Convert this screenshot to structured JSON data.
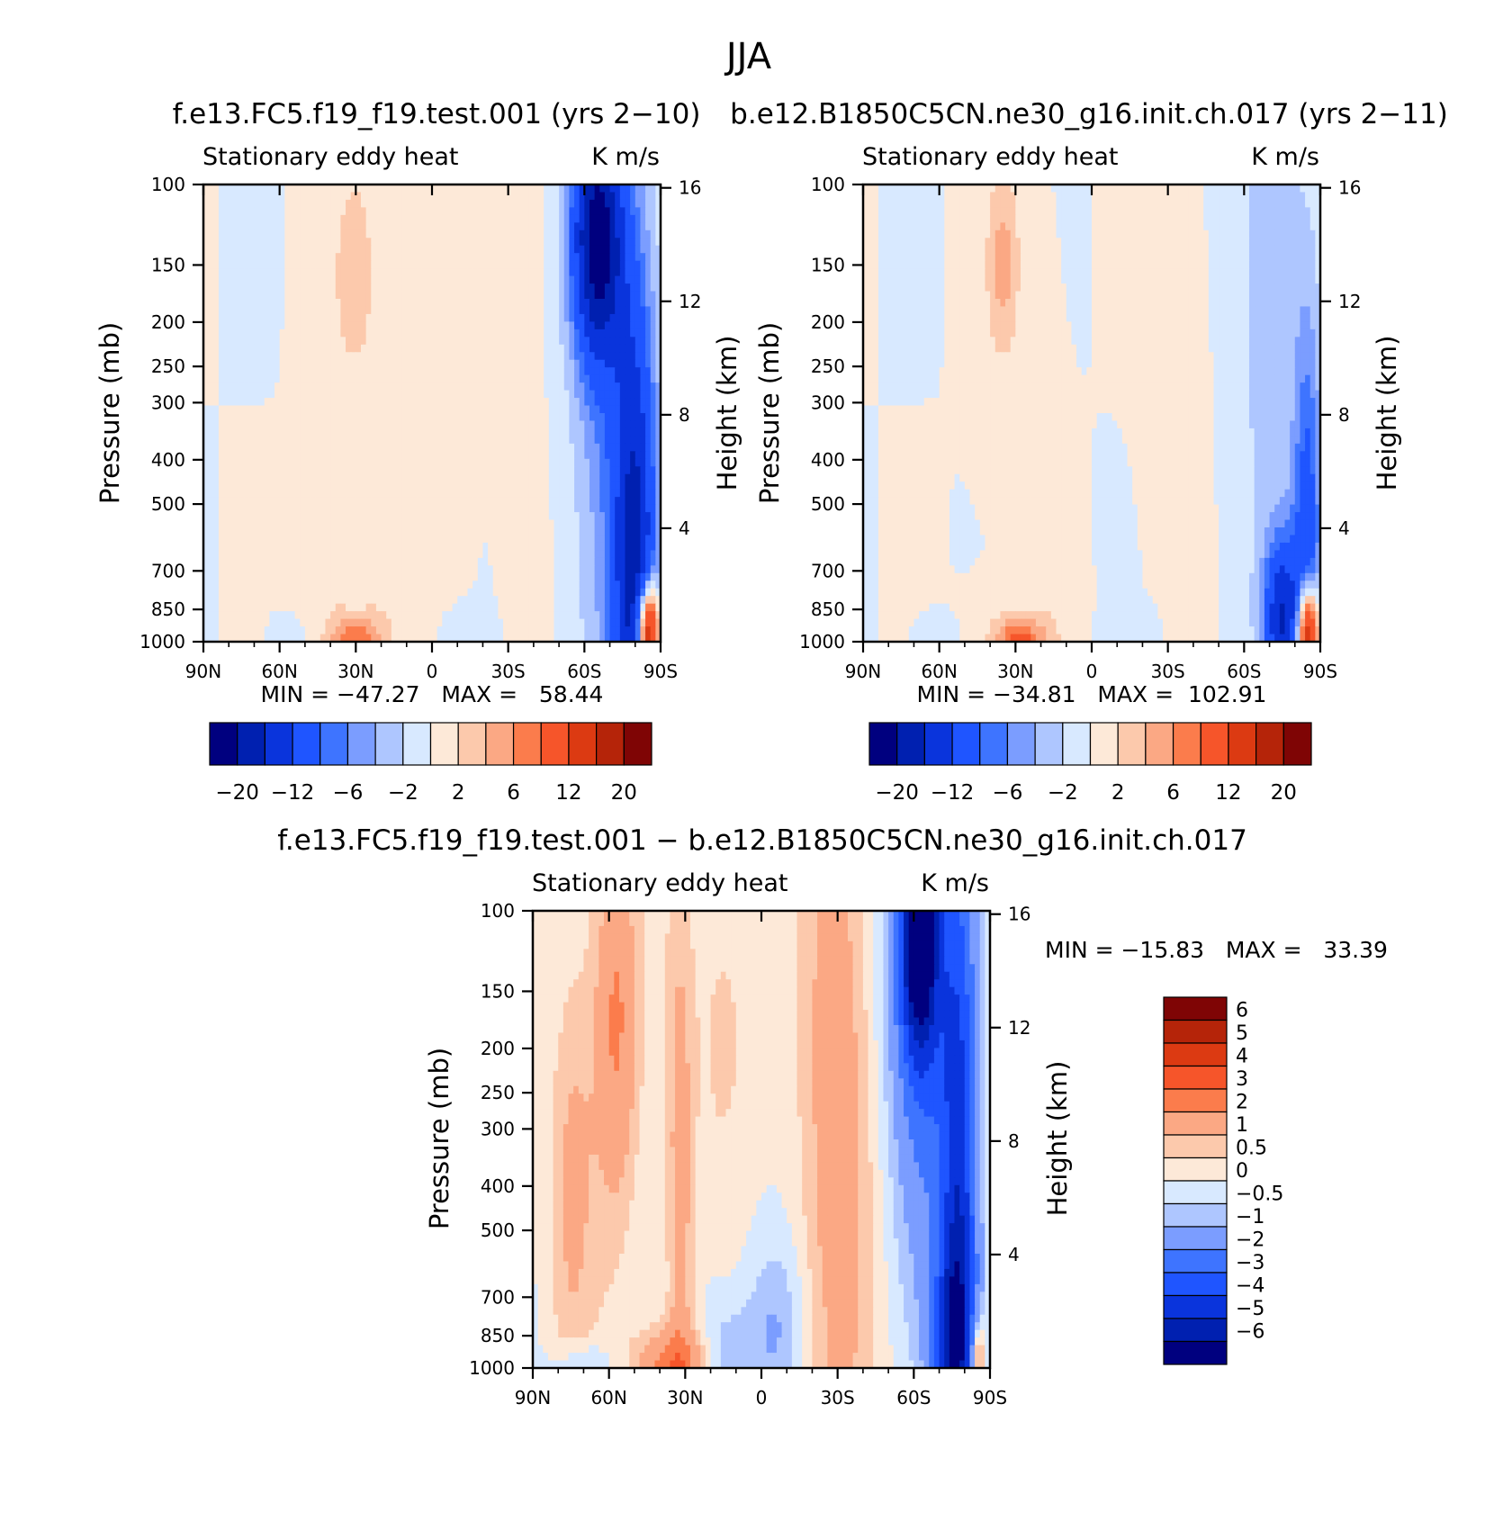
{
  "figure_title": "JJA",
  "colors": {
    "neg_palette": [
      "#00007f",
      "#0020b0",
      "#0a34dc",
      "#1f55ff",
      "#3e74ff",
      "#7b9dff",
      "#aec6ff",
      "#d8e9ff"
    ],
    "pos_palette": [
      "#fde9d8",
      "#fcc9ac",
      "#fba884",
      "#fb7c4c",
      "#f6552a",
      "#dc3a12",
      "#b52409",
      "#7f0505"
    ]
  },
  "chart_data": [
    {
      "id": "panel-a",
      "type": "contour",
      "title": "f.e13.FC5.f19_f19.test.001 (yrs 2−10)",
      "variable": "Stationary eddy heat",
      "units": "K m/s",
      "xlabel": "",
      "ylabel": "Pressure (mb)",
      "ylabel_right": "Height (km)",
      "x_ticks": [
        "90N",
        "60N",
        "30N",
        "0",
        "30S",
        "60S",
        "90S"
      ],
      "y_ticks": [
        1000,
        850,
        700,
        500,
        400,
        300,
        250,
        200,
        150,
        100
      ],
      "height_ticks": [
        4,
        8,
        12,
        16
      ],
      "xlim": [
        -90,
        90
      ],
      "ylim": [
        1000,
        100
      ],
      "stats": "MIN = −47.27   MAX =   58.44",
      "levels": [
        "−20",
        "−12",
        "−6",
        "−2",
        "2",
        "6",
        "12",
        "20"
      ],
      "field": [
        {
          "lat": 30,
          "p": 155,
          "dlat": 9,
          "h": 5.2,
          "v": 1
        },
        {
          "lat": 30,
          "p": 155,
          "dlat": 5,
          "h": 2.2,
          "v": 2
        },
        {
          "lat": 40,
          "p": 350,
          "dlat": 7,
          "h": 9,
          "v": 0.6
        },
        {
          "lat": 5,
          "p": 230,
          "dlat": 12,
          "h": 7,
          "v": 0.5
        },
        {
          "lat": 5,
          "p": 600,
          "dlat": 12,
          "h": 7,
          "v": 0.5
        },
        {
          "lat": -40,
          "p": 130,
          "dlat": 5,
          "h": 3,
          "v": 0.6
        },
        {
          "lat": -40,
          "p": 700,
          "dlat": 7,
          "h": 7,
          "v": 0.4
        },
        {
          "lat": 30,
          "p": 1000,
          "dlat": 12,
          "h": 1.4,
          "v": 2.5
        },
        {
          "lat": 30,
          "p": 1000,
          "dlat": 6,
          "h": 0.6,
          "v": 6
        },
        {
          "lat": 30,
          "p": 870,
          "dlat": 4,
          "h": 1.5,
          "v": -1
        },
        {
          "lat": 55,
          "p": 990,
          "dlat": 6,
          "h": 0.6,
          "v": -1
        },
        {
          "lat": -10,
          "p": 980,
          "dlat": 8,
          "h": 0.7,
          "v": -1
        },
        {
          "lat": -65,
          "p": 130,
          "dlat": 7,
          "h": 3,
          "v": -20
        },
        {
          "lat": -70,
          "p": 300,
          "dlat": 10,
          "h": 9,
          "v": -5
        },
        {
          "lat": -80,
          "p": 750,
          "dlat": 6,
          "h": 7,
          "v": -16
        },
        {
          "lat": -85,
          "p": 960,
          "dlat": 3,
          "h": 1.2,
          "v": 25
        }
      ]
    },
    {
      "id": "panel-b",
      "type": "contour",
      "title": "b.e12.B1850C5CN.ne30_g16.init.ch.017 (yrs 2−11)",
      "variable": "Stationary eddy heat",
      "units": "K m/s",
      "xlabel": "",
      "ylabel": "Pressure (mb)",
      "ylabel_right": "Height (km)",
      "x_ticks": [
        "90N",
        "60N",
        "30N",
        "0",
        "30S",
        "60S",
        "90S"
      ],
      "y_ticks": [
        1000,
        850,
        700,
        500,
        400,
        300,
        250,
        200,
        150,
        100
      ],
      "height_ticks": [
        4,
        8,
        12,
        16
      ],
      "xlim": [
        -90,
        90
      ],
      "ylim": [
        1000,
        100
      ],
      "stats": "MIN = −34.81   MAX =  102.91",
      "levels": [
        "−20",
        "−12",
        "−6",
        "−2",
        "2",
        "6",
        "12",
        "20"
      ],
      "field": [
        {
          "lat": 35,
          "p": 150,
          "dlat": 8,
          "h": 5,
          "v": 1
        },
        {
          "lat": 35,
          "p": 150,
          "dlat": 4,
          "h": 2,
          "v": 4
        },
        {
          "lat": -35,
          "p": 250,
          "dlat": 10,
          "h": 9,
          "v": 0.5
        },
        {
          "lat": 20,
          "p": 500,
          "dlat": 6,
          "h": 7,
          "v": 0.5
        },
        {
          "lat": 28,
          "p": 1000,
          "dlat": 12,
          "h": 1.2,
          "v": 3
        },
        {
          "lat": 28,
          "p": 1000,
          "dlat": 6,
          "h": 0.5,
          "v": 7
        },
        {
          "lat": 60,
          "p": 990,
          "dlat": 6,
          "h": 0.6,
          "v": -1
        },
        {
          "lat": -15,
          "p": 980,
          "dlat": 8,
          "h": 0.7,
          "v": -1
        },
        {
          "lat": 25,
          "p": 850,
          "dlat": 4,
          "h": 1.5,
          "v": -1
        },
        {
          "lat": -70,
          "p": 150,
          "dlat": 10,
          "h": 10,
          "v": -3
        },
        {
          "lat": -85,
          "p": 700,
          "dlat": 4,
          "h": 6,
          "v": -10
        },
        {
          "lat": -75,
          "p": 900,
          "dlat": 5,
          "h": 2,
          "v": -15
        },
        {
          "lat": -85,
          "p": 960,
          "dlat": 3,
          "h": 1.2,
          "v": 25
        }
      ]
    },
    {
      "id": "panel-c",
      "type": "contour",
      "title": "f.e13.FC5.f19_f19.test.001 − b.e12.B1850C5CN.ne30_g16.init.ch.017",
      "variable": "Stationary eddy heat",
      "units": "K m/s",
      "xlabel": "",
      "ylabel": "Pressure (mb)",
      "ylabel_right": "Height (km)",
      "x_ticks": [
        "90N",
        "60N",
        "30N",
        "0",
        "30S",
        "60S",
        "90S"
      ],
      "y_ticks": [
        1000,
        850,
        700,
        500,
        400,
        300,
        250,
        200,
        150,
        100
      ],
      "height_ticks": [
        4,
        8,
        12,
        16
      ],
      "xlim": [
        -90,
        90
      ],
      "ylim": [
        1000,
        100
      ],
      "stats": "MIN = −15.83   MAX =   33.39",
      "levels": [
        "6",
        "5",
        "4",
        "3",
        "2",
        "1",
        "0.5",
        "0",
        "−0.5",
        "−1",
        "−2",
        "−3",
        "−4",
        "−5",
        "−6"
      ],
      "field": [
        {
          "lat": 60,
          "p": 200,
          "dlat": 10,
          "h": 7,
          "v": 0.7
        },
        {
          "lat": 57,
          "p": 170,
          "dlat": 5,
          "h": 4,
          "v": 1.5
        },
        {
          "lat": 75,
          "p": 400,
          "dlat": 6,
          "h": 5,
          "v": 1
        },
        {
          "lat": 32,
          "p": 400,
          "dlat": 4,
          "h": 8,
          "v": 1.3
        },
        {
          "lat": -30,
          "p": 280,
          "dlat": 10,
          "h": 11,
          "v": 1.5
        },
        {
          "lat": 15,
          "p": 180,
          "dlat": 8,
          "h": 4,
          "v": 0.7
        },
        {
          "lat": 35,
          "p": 1000,
          "dlat": 10,
          "h": 1,
          "v": 2.5
        },
        {
          "lat": 15,
          "p": 950,
          "dlat": 8,
          "h": 1.5,
          "v": -1
        },
        {
          "lat": -5,
          "p": 820,
          "dlat": 8,
          "h": 2,
          "v": -1
        },
        {
          "lat": 70,
          "p": 990,
          "dlat": 8,
          "h": 0.6,
          "v": -1
        },
        {
          "lat": -65,
          "p": 140,
          "dlat": 10,
          "h": 7,
          "v": -3
        },
        {
          "lat": -62,
          "p": 110,
          "dlat": 5,
          "h": 3,
          "v": -6
        },
        {
          "lat": -78,
          "p": 500,
          "dlat": 5,
          "h": 9,
          "v": -4
        },
        {
          "lat": -75,
          "p": 880,
          "dlat": 6,
          "h": 2.5,
          "v": -3
        },
        {
          "lat": -85,
          "p": 950,
          "dlat": 2,
          "h": 1,
          "v": 3
        }
      ]
    }
  ]
}
